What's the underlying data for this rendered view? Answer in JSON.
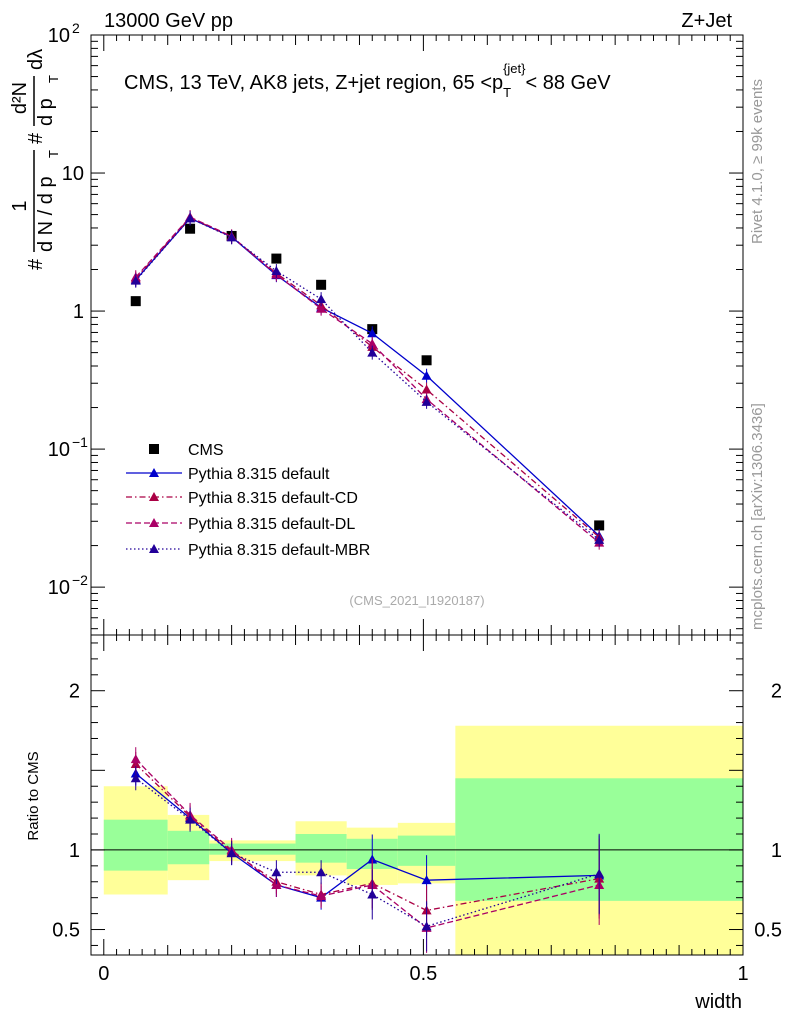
{
  "header": {
    "left_label": "13000 GeV pp",
    "right_label": "Z+Jet"
  },
  "side_labels": {
    "rivet": "Rivet 4.1.0, ≥ 99k events",
    "mcplots": "mcplots.cern.ch [arXiv:1306.3436]"
  },
  "colors": {
    "data": "#000000",
    "default": "#0000cc",
    "cd": "#aa0044",
    "dl": "#aa0066",
    "mbr": "#220099",
    "band_inner": "#99ff99",
    "band_outer": "#ffff99"
  },
  "chart_data": [
    {
      "type": "line",
      "panel": "main",
      "title": "CMS, 13 TeV, AK8 jets, Z+jet region, 65 <p_T^{jet}< 88 GeV",
      "title_parts": {
        "main": "CMS, 13 TeV, AK8 jets, Z+jet region, 65 <p",
        "sub": "T",
        "sup": "{jet}",
        "tail": "< 88 GeV"
      },
      "ylabel": "1/(dN/dp_T) d²N/(dp_T dλ)",
      "ylabel_parts": {
        "lead": "#",
        "den": "d N / d p",
        "num": "1",
        "lead2": "#",
        "frac2_num": "d²N",
        "frac2_den": "d p",
        "frac2_tail": "dλ",
        "sub": "T"
      },
      "yscale": "log",
      "ylim": [
        0.0045,
        100
      ],
      "xlim": [
        -0.02,
        1.0
      ],
      "y_ticks": [
        {
          "value": 100,
          "base": "10",
          "exp": "2"
        },
        {
          "value": 10,
          "base": "10",
          "exp": ""
        },
        {
          "value": 1,
          "base": "1",
          "exp": ""
        },
        {
          "value": 0.1,
          "base": "10",
          "exp": "−1"
        },
        {
          "value": 0.01,
          "base": "10",
          "exp": "−2"
        }
      ],
      "watermark": "(CMS_2021_I1920187)",
      "legend_position": "lower-left",
      "x": [
        0.05,
        0.135,
        0.2,
        0.27,
        0.34,
        0.42,
        0.505,
        0.775
      ],
      "series": [
        {
          "name": "CMS",
          "key": "data",
          "style": "data",
          "values": [
            1.18,
            3.95,
            3.5,
            2.4,
            1.55,
            0.74,
            0.44,
            0.028
          ]
        },
        {
          "name": "Pythia 8.315 default",
          "key": "default",
          "style": "solid",
          "values": [
            1.68,
            4.7,
            3.45,
            1.82,
            1.06,
            0.69,
            0.34,
            0.0235
          ]
        },
        {
          "name": "Pythia 8.315 default-CD",
          "key": "cd",
          "style": "dashdot",
          "values": [
            1.72,
            4.75,
            3.45,
            1.88,
            1.1,
            0.55,
            0.27,
            0.023
          ]
        },
        {
          "name": "Pythia 8.315 default-DL",
          "key": "dl",
          "style": "dashed",
          "values": [
            1.76,
            4.8,
            3.48,
            1.84,
            1.04,
            0.58,
            0.23,
            0.021
          ]
        },
        {
          "name": "Pythia 8.315 default-MBR",
          "key": "mbr",
          "style": "dotted",
          "values": [
            1.66,
            4.7,
            3.42,
            1.95,
            1.22,
            0.5,
            0.22,
            0.022
          ]
        }
      ]
    },
    {
      "type": "line",
      "panel": "ratio",
      "ylabel": "Ratio to CMS",
      "xlabel": "width",
      "ylim": [
        0.34,
        2.35
      ],
      "xlim": [
        -0.02,
        1.0
      ],
      "x_ticks": [
        {
          "value": 0,
          "label": "0"
        },
        {
          "value": 0.5,
          "label": "0.5"
        },
        {
          "value": 1,
          "label": "1"
        }
      ],
      "y_ticks": [
        {
          "value": 2,
          "label": "2"
        },
        {
          "value": 1,
          "label": "1"
        },
        {
          "value": 0.5,
          "label": "0.5"
        }
      ],
      "bands": [
        {
          "x0": 0.0,
          "x1": 0.1,
          "inner": [
            0.87,
            1.19
          ],
          "outer": [
            0.72,
            1.4
          ]
        },
        {
          "x0": 0.1,
          "x1": 0.165,
          "inner": [
            0.91,
            1.12
          ],
          "outer": [
            0.81,
            1.22
          ]
        },
        {
          "x0": 0.165,
          "x1": 0.3,
          "inner": [
            0.97,
            1.04
          ],
          "outer": [
            0.93,
            1.06
          ]
        },
        {
          "x0": 0.3,
          "x1": 0.38,
          "inner": [
            0.92,
            1.1
          ],
          "outer": [
            0.84,
            1.18
          ]
        },
        {
          "x0": 0.38,
          "x1": 0.46,
          "inner": [
            0.88,
            1.07
          ],
          "outer": [
            0.78,
            1.14
          ]
        },
        {
          "x0": 0.46,
          "x1": 0.55,
          "inner": [
            0.9,
            1.09
          ],
          "outer": [
            0.79,
            1.17
          ]
        },
        {
          "x0": 0.55,
          "x1": 1.0,
          "inner": [
            0.68,
            1.45
          ],
          "outer": [
            0.34,
            1.78
          ]
        }
      ],
      "x": [
        0.05,
        0.135,
        0.2,
        0.27,
        0.34,
        0.42,
        0.505,
        0.775
      ],
      "series": [
        {
          "name": "Pythia 8.315 default",
          "key": "default",
          "style": "solid",
          "values": [
            1.48,
            1.2,
            0.98,
            0.78,
            0.7,
            0.94,
            0.81,
            0.84
          ]
        },
        {
          "name": "Pythia 8.315 default-CD",
          "key": "cd",
          "style": "dashdot",
          "values": [
            1.54,
            1.21,
            0.99,
            0.8,
            0.72,
            0.79,
            0.62,
            0.82
          ]
        },
        {
          "name": "Pythia 8.315 default-DL",
          "key": "dl",
          "style": "dashed",
          "values": [
            1.57,
            1.22,
            1.0,
            0.78,
            0.71,
            0.78,
            0.51,
            0.78
          ]
        },
        {
          "name": "Pythia 8.315 default-MBR",
          "key": "mbr",
          "style": "dotted",
          "values": [
            1.45,
            1.19,
            0.98,
            0.86,
            0.86,
            0.72,
            0.52,
            0.85
          ]
        }
      ]
    }
  ]
}
